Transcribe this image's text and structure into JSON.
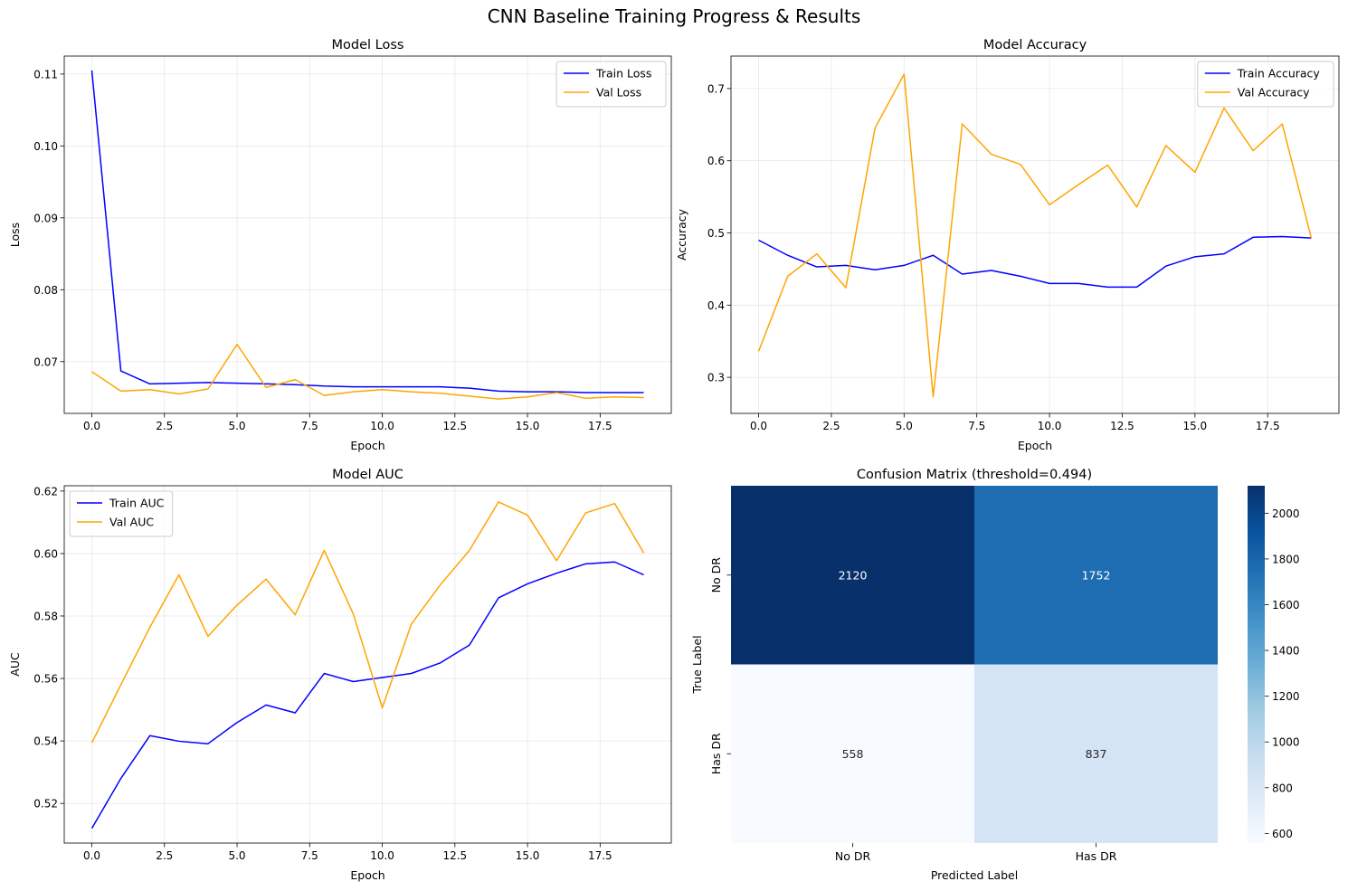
{
  "figure": {
    "title": "CNN Baseline Training Progress & Results"
  },
  "chart_data": [
    {
      "type": "line",
      "title": "Model Loss",
      "xlabel": "Epoch",
      "ylabel": "Loss",
      "xlim": [
        -0.95,
        19.95
      ],
      "ylim": [
        0.0628,
        0.1125
      ],
      "xticks": [
        0,
        2.5,
        5,
        7.5,
        10,
        12.5,
        15,
        17.5
      ],
      "xtick_labels": [
        "0.0",
        "2.5",
        "5.0",
        "7.5",
        "10.0",
        "12.5",
        "15.0",
        "17.5"
      ],
      "yticks": [
        0.07,
        0.08,
        0.09,
        0.1,
        0.11
      ],
      "ytick_labels": [
        "0.07",
        "0.08",
        "0.09",
        "0.10",
        "0.11"
      ],
      "grid": true,
      "legend": "upper-right",
      "x": [
        0,
        1,
        2,
        3,
        4,
        5,
        6,
        7,
        8,
        9,
        10,
        11,
        12,
        13,
        14,
        15,
        16,
        17,
        18,
        19
      ],
      "series": [
        {
          "name": "Train Loss",
          "color": "#0000ff",
          "values": [
            0.1105,
            0.0687,
            0.0669,
            0.067,
            0.0671,
            0.067,
            0.0669,
            0.0668,
            0.0666,
            0.0665,
            0.0665,
            0.0665,
            0.0665,
            0.0663,
            0.0659,
            0.0658,
            0.0658,
            0.0657,
            0.0657,
            0.0657
          ]
        },
        {
          "name": "Val Loss",
          "color": "#ffa500",
          "values": [
            0.0686,
            0.0659,
            0.0661,
            0.0655,
            0.0662,
            0.0724,
            0.0664,
            0.0675,
            0.0653,
            0.0658,
            0.0661,
            0.0658,
            0.0656,
            0.0652,
            0.0648,
            0.0651,
            0.0657,
            0.0649,
            0.0651,
            0.065
          ]
        }
      ]
    },
    {
      "type": "line",
      "title": "Model Accuracy",
      "xlabel": "Epoch",
      "ylabel": "Accuracy",
      "xlim": [
        -0.95,
        19.95
      ],
      "ylim": [
        0.25,
        0.745
      ],
      "xticks": [
        0,
        2.5,
        5,
        7.5,
        10,
        12.5,
        15,
        17.5
      ],
      "xtick_labels": [
        "0.0",
        "2.5",
        "5.0",
        "7.5",
        "10.0",
        "12.5",
        "15.0",
        "17.5"
      ],
      "yticks": [
        0.3,
        0.4,
        0.5,
        0.6,
        0.7
      ],
      "ytick_labels": [
        "0.3",
        "0.4",
        "0.5",
        "0.6",
        "0.7"
      ],
      "grid": true,
      "legend": "upper-right",
      "x": [
        0,
        1,
        2,
        3,
        4,
        5,
        6,
        7,
        8,
        9,
        10,
        11,
        12,
        13,
        14,
        15,
        16,
        17,
        18,
        19
      ],
      "series": [
        {
          "name": "Train Accuracy",
          "color": "#0000ff",
          "values": [
            0.49,
            0.469,
            0.453,
            0.455,
            0.449,
            0.455,
            0.469,
            0.443,
            0.448,
            0.44,
            0.43,
            0.43,
            0.425,
            0.425,
            0.454,
            0.467,
            0.471,
            0.494,
            0.495,
            0.493
          ]
        },
        {
          "name": "Val Accuracy",
          "color": "#ffa500",
          "values": [
            0.336,
            0.44,
            0.471,
            0.424,
            0.645,
            0.72,
            0.273,
            0.651,
            0.609,
            0.595,
            0.539,
            0.567,
            0.594,
            0.536,
            0.621,
            0.584,
            0.673,
            0.614,
            0.651,
            0.493
          ]
        }
      ]
    },
    {
      "type": "line",
      "title": "Model AUC",
      "xlabel": "Epoch",
      "ylabel": "AUC",
      "xlim": [
        -0.95,
        19.95
      ],
      "ylim": [
        0.5073,
        0.6217
      ],
      "xticks": [
        0,
        2.5,
        5,
        7.5,
        10,
        12.5,
        15,
        17.5
      ],
      "xtick_labels": [
        "0.0",
        "2.5",
        "5.0",
        "7.5",
        "10.0",
        "12.5",
        "15.0",
        "17.5"
      ],
      "yticks": [
        0.52,
        0.54,
        0.56,
        0.58,
        0.6,
        0.62
      ],
      "ytick_labels": [
        "0.52",
        "0.54",
        "0.56",
        "0.58",
        "0.60",
        "0.62"
      ],
      "grid": true,
      "legend": "upper-left",
      "x": [
        0,
        1,
        2,
        3,
        4,
        5,
        6,
        7,
        8,
        9,
        10,
        11,
        12,
        13,
        14,
        15,
        16,
        17,
        18,
        19
      ],
      "series": [
        {
          "name": "Train AUC",
          "color": "#0000ff",
          "values": [
            0.512,
            0.528,
            0.5417,
            0.5399,
            0.5391,
            0.5459,
            0.5515,
            0.549,
            0.5616,
            0.559,
            0.5603,
            0.5616,
            0.565,
            0.5707,
            0.5858,
            0.5903,
            0.5937,
            0.5967,
            0.5973,
            0.5932
          ]
        },
        {
          "name": "Val AUC",
          "color": "#ffa500",
          "values": [
            0.5394,
            0.558,
            0.5764,
            0.5932,
            0.5735,
            0.5835,
            0.5918,
            0.5804,
            0.601,
            0.5807,
            0.5506,
            0.5774,
            0.59,
            0.601,
            0.6165,
            0.6123,
            0.5977,
            0.613,
            0.616,
            0.6002
          ]
        }
      ]
    },
    {
      "type": "heatmap",
      "title": "Confusion Matrix (threshold=0.494)",
      "xlabel": "Predicted Label",
      "ylabel": "True Label",
      "row_labels": [
        "No DR",
        "Has DR"
      ],
      "col_labels": [
        "No DR",
        "Has DR"
      ],
      "values": [
        [
          2120,
          1752
        ],
        [
          558,
          837
        ]
      ],
      "colormap": "Blues",
      "colorbar_ticks": [
        600,
        800,
        1000,
        1200,
        1400,
        1600,
        1800,
        2000
      ],
      "colorbar_tick_labels": [
        "600",
        "800",
        "1000",
        "1200",
        "1400",
        "1600",
        "1800",
        "2000"
      ],
      "colorbar_range": [
        558,
        2120
      ]
    }
  ]
}
